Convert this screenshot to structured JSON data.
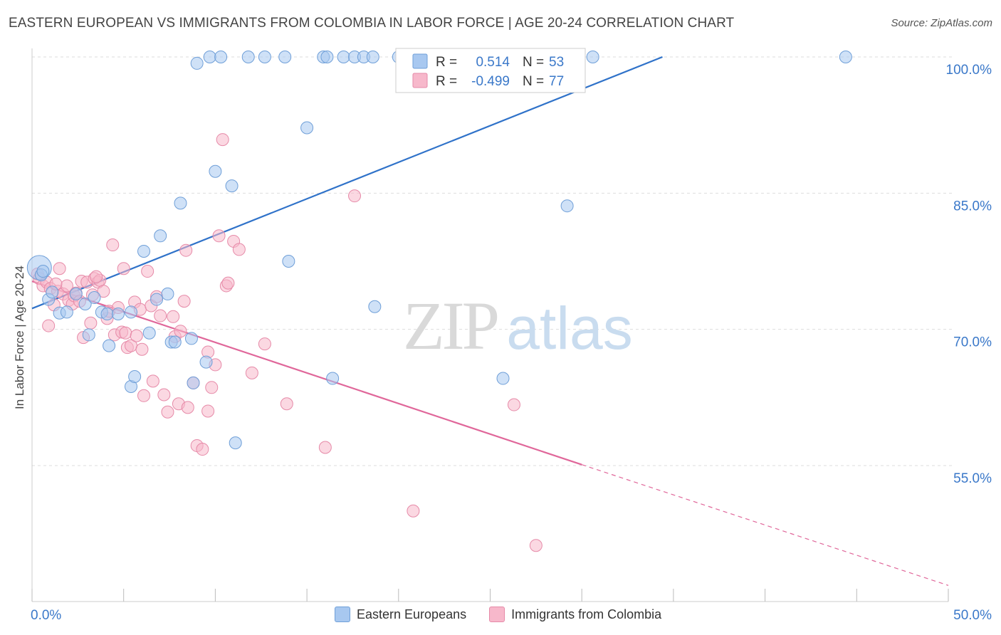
{
  "title": "EASTERN EUROPEAN VS IMMIGRANTS FROM COLOMBIA IN LABOR FORCE | AGE 20-24 CORRELATION CHART",
  "source": "Source: ZipAtlas.com",
  "watermark": {
    "zip": "ZIP",
    "atlas": "atlas"
  },
  "colors": {
    "blue_fill": "#a8c8f0",
    "blue_stroke": "#6f9fd8",
    "blue_line": "#2f72c9",
    "pink_fill": "#f7b8cb",
    "pink_stroke": "#e68aa8",
    "pink_line": "#e0679a",
    "axis_text": "#3a78c9",
    "grid": "#dddddd"
  },
  "legend_box": {
    "rows": [
      {
        "r_label": "R =",
        "r_value": "0.514",
        "n_label": "N =",
        "n_value": "53"
      },
      {
        "r_label": "R =",
        "r_value": "-0.499",
        "n_label": "N =",
        "n_value": "77"
      }
    ]
  },
  "bottom_legend": [
    "Eastern Europeans",
    "Immigrants from Colombia"
  ],
  "chart_data": {
    "type": "scatter",
    "title": "EASTERN EUROPEAN VS IMMIGRANTS FROM COLOMBIA IN LABOR FORCE | AGE 20-24 CORRELATION CHART",
    "xlabel": "",
    "ylabel": "In Labor Force | Age 20-24",
    "xlim": [
      0,
      50
    ],
    "ylim": [
      40,
      100
    ],
    "x_tick_labels": [
      "0.0%",
      "50.0%"
    ],
    "y_ticks": [
      55,
      70,
      85,
      100
    ],
    "y_tick_labels": [
      "55.0%",
      "70.0%",
      "85.0%",
      "100.0%"
    ],
    "grid": true,
    "legend_position": "top-center",
    "series": [
      {
        "name": "Eastern Europeans",
        "r": 0.514,
        "n": 53,
        "trend": {
          "x0": 0,
          "y0": 72.3,
          "x1": 34.4,
          "y1": 100
        },
        "points": [
          [
            0.4,
            76.8
          ],
          [
            0.5,
            76.0
          ],
          [
            0.9,
            73.3
          ],
          [
            1.1,
            74.1
          ],
          [
            1.5,
            71.8
          ],
          [
            1.9,
            71.9
          ],
          [
            2.4,
            73.9
          ],
          [
            2.9,
            72.8
          ],
          [
            3.1,
            69.4
          ],
          [
            3.4,
            73.5
          ],
          [
            3.8,
            71.9
          ],
          [
            4.1,
            71.7
          ],
          [
            4.2,
            68.2
          ],
          [
            4.7,
            71.7
          ],
          [
            5.4,
            71.9
          ],
          [
            5.4,
            63.7
          ],
          [
            5.6,
            64.8
          ],
          [
            6.1,
            78.6
          ],
          [
            6.4,
            69.6
          ],
          [
            6.8,
            73.3
          ],
          [
            7.0,
            80.3
          ],
          [
            7.4,
            73.9
          ],
          [
            7.6,
            68.6
          ],
          [
            7.8,
            68.6
          ],
          [
            8.1,
            83.9
          ],
          [
            8.7,
            69.0
          ],
          [
            8.8,
            64.1
          ],
          [
            9.0,
            99.3
          ],
          [
            9.5,
            66.4
          ],
          [
            9.7,
            100
          ],
          [
            10.0,
            87.4
          ],
          [
            10.3,
            100
          ],
          [
            10.9,
            85.8
          ],
          [
            11.1,
            57.5
          ],
          [
            11.8,
            100
          ],
          [
            12.7,
            100
          ],
          [
            13.8,
            100
          ],
          [
            14.0,
            77.5
          ],
          [
            15.0,
            92.2
          ],
          [
            15.9,
            100
          ],
          [
            16.1,
            100
          ],
          [
            16.4,
            64.6
          ],
          [
            17.0,
            100
          ],
          [
            17.6,
            100
          ],
          [
            18.1,
            100
          ],
          [
            18.6,
            100
          ],
          [
            18.7,
            72.5
          ],
          [
            20.0,
            100
          ],
          [
            25.7,
            64.6
          ],
          [
            29.2,
            83.6
          ],
          [
            30.6,
            100
          ],
          [
            44.4,
            100
          ],
          [
            0.6,
            76.4
          ]
        ]
      },
      {
        "name": "Immigrants from Colombia",
        "r": -0.499,
        "n": 77,
        "trend": {
          "x0": 0,
          "y0": 75.3,
          "x1": 30.0,
          "y1": 55.1
        },
        "trend_dash": {
          "x0": 30.0,
          "y0": 55.1,
          "x1": 50.0,
          "y1": 41.8
        },
        "points": [
          [
            0.3,
            76.1
          ],
          [
            0.4,
            75.6
          ],
          [
            0.6,
            74.8
          ],
          [
            0.8,
            75.2
          ],
          [
            0.9,
            70.4
          ],
          [
            1.0,
            74.5
          ],
          [
            1.2,
            72.7
          ],
          [
            1.4,
            74.2
          ],
          [
            1.5,
            76.7
          ],
          [
            1.7,
            73.9
          ],
          [
            1.9,
            74.8
          ],
          [
            2.0,
            73.2
          ],
          [
            2.2,
            72.8
          ],
          [
            2.3,
            73.7
          ],
          [
            2.4,
            74.0
          ],
          [
            2.6,
            73.1
          ],
          [
            2.7,
            75.3
          ],
          [
            2.8,
            69.1
          ],
          [
            3.0,
            75.2
          ],
          [
            3.2,
            70.7
          ],
          [
            3.3,
            73.8
          ],
          [
            3.4,
            75.6
          ],
          [
            3.6,
            75.2
          ],
          [
            3.7,
            75.4
          ],
          [
            3.9,
            74.2
          ],
          [
            4.1,
            71.2
          ],
          [
            4.2,
            72.0
          ],
          [
            4.4,
            79.3
          ],
          [
            4.5,
            69.4
          ],
          [
            4.7,
            72.4
          ],
          [
            4.9,
            69.7
          ],
          [
            5.0,
            76.7
          ],
          [
            5.1,
            69.6
          ],
          [
            5.2,
            68.0
          ],
          [
            5.4,
            68.2
          ],
          [
            5.6,
            73.0
          ],
          [
            5.7,
            69.3
          ],
          [
            5.9,
            72.2
          ],
          [
            6.0,
            67.8
          ],
          [
            6.1,
            62.7
          ],
          [
            6.3,
            76.4
          ],
          [
            6.5,
            72.6
          ],
          [
            6.6,
            64.3
          ],
          [
            6.8,
            73.6
          ],
          [
            7.0,
            71.5
          ],
          [
            7.2,
            62.8
          ],
          [
            7.4,
            60.9
          ],
          [
            7.7,
            71.4
          ],
          [
            7.8,
            69.2
          ],
          [
            8.0,
            61.8
          ],
          [
            8.1,
            69.8
          ],
          [
            8.3,
            73.1
          ],
          [
            8.4,
            78.7
          ],
          [
            8.5,
            61.4
          ],
          [
            8.8,
            64.1
          ],
          [
            9.0,
            57.2
          ],
          [
            9.3,
            56.8
          ],
          [
            9.6,
            67.5
          ],
          [
            9.6,
            61.0
          ],
          [
            9.8,
            63.6
          ],
          [
            10.0,
            66.1
          ],
          [
            10.2,
            80.3
          ],
          [
            10.4,
            90.9
          ],
          [
            10.6,
            74.8
          ],
          [
            10.7,
            75.1
          ],
          [
            11.0,
            79.7
          ],
          [
            11.3,
            78.8
          ],
          [
            12.0,
            65.2
          ],
          [
            12.7,
            68.4
          ],
          [
            13.9,
            61.8
          ],
          [
            16.0,
            57.0
          ],
          [
            17.6,
            84.7
          ],
          [
            20.8,
            50.0
          ],
          [
            26.3,
            61.7
          ],
          [
            27.5,
            46.2
          ],
          [
            1.3,
            75.0
          ],
          [
            3.5,
            75.8
          ]
        ]
      }
    ]
  }
}
